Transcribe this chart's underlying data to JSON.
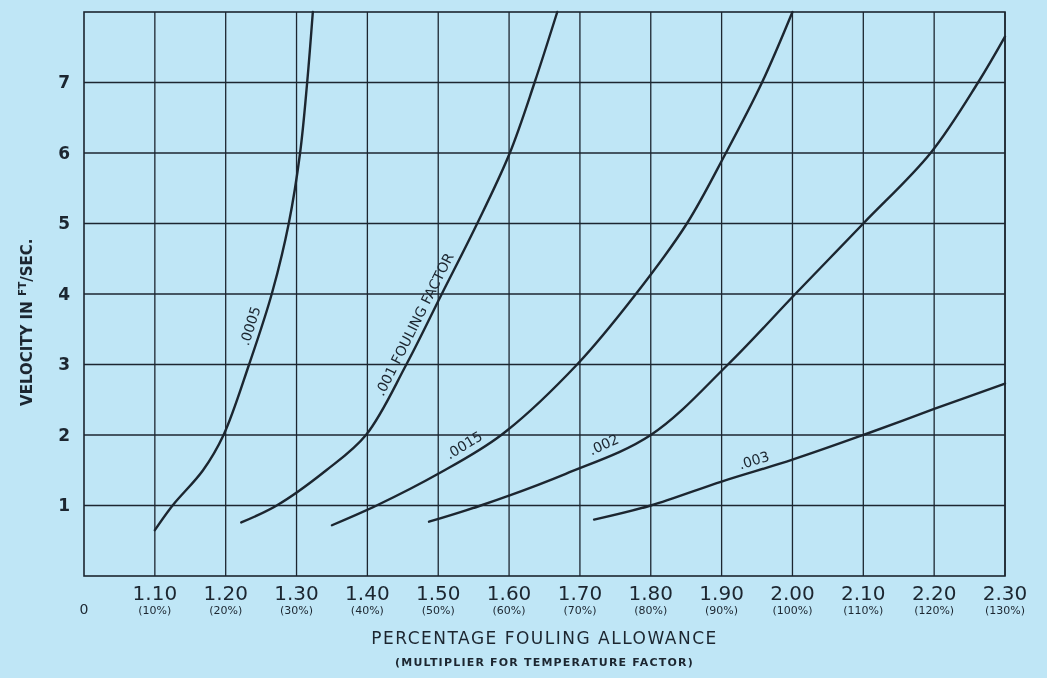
{
  "chart_data": {
    "type": "line",
    "xlabel": "PERCENTAGE FOULING ALLOWANCE",
    "ylabel": "VELOCITY IN $^{FT}$/SEC.",
    "annotations": [
      "(MULTIPLIER FOR TEMPERATURE FACTOR)"
    ],
    "xlim": [
      1.0,
      2.3
    ],
    "ylim": [
      0,
      8
    ],
    "xticks": [
      {
        "value": 1.1,
        "label": "1.10"
      },
      {
        "value": 1.2,
        "label": "1.20"
      },
      {
        "value": 1.3,
        "label": "1.30"
      },
      {
        "value": 1.4,
        "label": "1.40"
      },
      {
        "value": 1.5,
        "label": "1.50"
      },
      {
        "value": 1.6,
        "label": "1.60"
      },
      {
        "value": 1.7,
        "label": "1.70"
      },
      {
        "value": 1.8,
        "label": "1.80"
      },
      {
        "value": 1.9,
        "label": "1.90"
      },
      {
        "value": 2.0,
        "label": "2.00"
      },
      {
        "value": 2.1,
        "label": "2.10"
      },
      {
        "value": 2.2,
        "label": "2.20"
      },
      {
        "value": 2.3,
        "label": "2.30"
      }
    ],
    "x2lim": [
      0,
      130
    ],
    "x2ticks": [
      0,
      {
        "value": 10,
        "label": "(10%)"
      },
      {
        "value": 20,
        "label": "(20%)"
      },
      {
        "value": 30,
        "label": "(30%)"
      },
      {
        "value": 40,
        "label": "(40%)"
      },
      {
        "value": 50,
        "label": "(50%)"
      },
      {
        "value": 60,
        "label": "(60%)"
      },
      {
        "value": 70,
        "label": "(70%)"
      },
      {
        "value": 80,
        "label": "(80%)"
      },
      {
        "value": 90,
        "label": "(90%)"
      },
      {
        "value": 100,
        "label": "(100%)"
      },
      {
        "value": 110,
        "label": "(110%)"
      },
      {
        "value": 120,
        "label": "(120%)"
      },
      {
        "value": 130,
        "label": "(130%)"
      }
    ],
    "yticks": [
      1,
      2,
      3,
      4,
      5,
      6,
      7
    ],
    "grid": true,
    "marker": "none",
    "line_style": "solid",
    "series": [
      {
        "name": ".0005",
        "color": "#1c2630",
        "x": [
          1.1,
          1.125,
          1.168,
          1.197,
          1.233,
          1.265,
          1.289,
          1.305,
          1.315,
          1.323
        ],
        "values": [
          0.65,
          1,
          1.5,
          2,
          3,
          4,
          5,
          6,
          7,
          8
        ]
      },
      {
        "name": ".001 FOULING FACTOR",
        "color": "#1c2630",
        "x": [
          1.222,
          1.272,
          1.342,
          1.398,
          1.455,
          1.505,
          1.555,
          1.601,
          1.636,
          1.668
        ],
        "values": [
          0.76,
          1,
          1.5,
          2,
          3,
          4,
          5,
          6,
          7,
          8
        ]
      },
      {
        "name": ".0015",
        "color": "#1c2630",
        "x": [
          1.35,
          1.413,
          1.5,
          1.589,
          1.696,
          1.779,
          1.851,
          1.906,
          1.957,
          2.0
        ],
        "values": [
          0.72,
          1,
          1.45,
          2,
          3,
          4,
          5,
          6,
          7,
          8
        ]
      },
      {
        "name": ".002",
        "color": "#1c2630",
        "x": [
          1.487,
          1.56,
          1.68,
          1.8,
          1.909,
          2.004,
          2.1,
          2.195,
          2.262,
          2.3
        ],
        "values": [
          0.77,
          1,
          1.45,
          2,
          3,
          4,
          5,
          6,
          7,
          7.65
        ]
      },
      {
        "name": ".003",
        "color": "#1c2630",
        "x": [
          1.72,
          1.8,
          1.9,
          2.0,
          2.1,
          2.2,
          2.3
        ],
        "values": [
          0.8,
          1.0,
          1.34,
          1.65,
          2.0,
          2.37,
          2.73
        ]
      }
    ]
  }
}
